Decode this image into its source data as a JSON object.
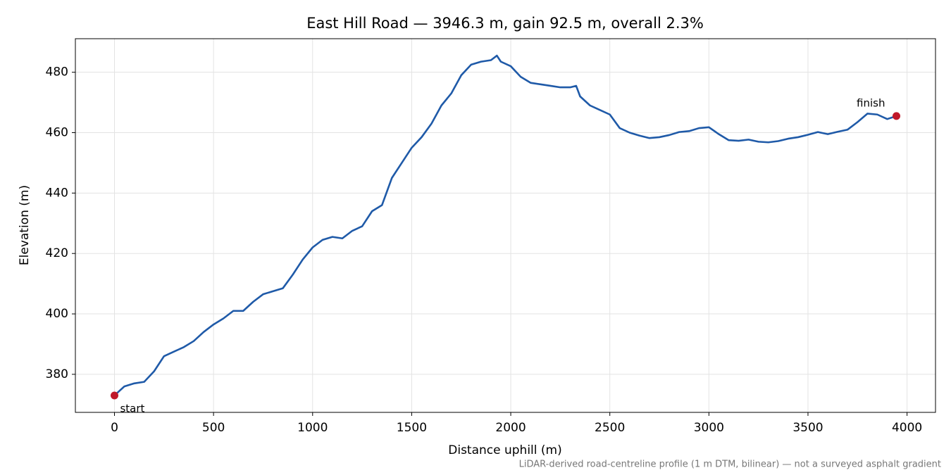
{
  "chart_data": {
    "type": "line",
    "title": "East Hill Road — 3946.3 m, gain 92.5 m, overall 2.3%",
    "x_label": "Distance uphill (m)",
    "y_label": "Elevation (m)",
    "footnote": "LiDAR-derived road-centreline profile (1 m DTM, bilinear) — not a surveyed asphalt gradient",
    "start_label": "start",
    "finish_label": "finish",
    "x": [
      0,
      50,
      100,
      150,
      200,
      250,
      300,
      350,
      400,
      450,
      500,
      550,
      600,
      650,
      700,
      750,
      800,
      850,
      900,
      950,
      1000,
      1050,
      1100,
      1150,
      1200,
      1250,
      1300,
      1350,
      1400,
      1450,
      1500,
      1550,
      1600,
      1650,
      1700,
      1750,
      1800,
      1850,
      1900,
      1930,
      1950,
      2000,
      2050,
      2100,
      2150,
      2200,
      2250,
      2300,
      2330,
      2350,
      2400,
      2450,
      2500,
      2550,
      2600,
      2650,
      2700,
      2750,
      2800,
      2850,
      2900,
      2950,
      3000,
      3050,
      3100,
      3150,
      3200,
      3250,
      3300,
      3350,
      3400,
      3450,
      3500,
      3550,
      3600,
      3650,
      3700,
      3750,
      3800,
      3850,
      3900,
      3946.3
    ],
    "series": [
      {
        "name": "Elevation",
        "color": "#1f5aa8",
        "marker_color": "#c0182a",
        "values": [
          373.0,
          376.0,
          377.0,
          377.5,
          381,
          386,
          387.5,
          389,
          391,
          394,
          396.5,
          398.5,
          401,
          401,
          404,
          406.5,
          407.5,
          408.5,
          413,
          418,
          422,
          424.5,
          425.5,
          425,
          427.5,
          429,
          434,
          436,
          445,
          450,
          455,
          458.5,
          463,
          469,
          473,
          479,
          482.5,
          483.5,
          484,
          485.5,
          483.5,
          482,
          478.5,
          476.5,
          476,
          475.5,
          475,
          475,
          475.5,
          472,
          469,
          467.5,
          466,
          461.5,
          460,
          459,
          458.2,
          458.5,
          459.2,
          460.2,
          460.5,
          461.5,
          461.8,
          459.5,
          457.5,
          457.3,
          457.7,
          457,
          456.8,
          457.2,
          458,
          458.5,
          459.3,
          460.2,
          459.5,
          460.3,
          461,
          463.5,
          466.3,
          466,
          464.5,
          465.5
        ]
      }
    ],
    "xlim": [
      -197.3,
      4143.6
    ],
    "ylim": [
      367.4,
      491.1
    ],
    "xticks": [
      0,
      500,
      1000,
      1500,
      2000,
      2500,
      3000,
      3500,
      4000
    ],
    "yticks": [
      380,
      400,
      420,
      440,
      460,
      480
    ],
    "grid": true
  }
}
